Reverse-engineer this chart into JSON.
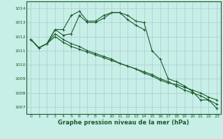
{
  "title": "Graphe pression niveau de la mer (hPa)",
  "bg_color": "#c8eee8",
  "grid_color": "#aacccc",
  "line_color": "#1a5c2a",
  "x": [
    0,
    1,
    2,
    3,
    4,
    5,
    6,
    7,
    8,
    9,
    10,
    11,
    12,
    13,
    14,
    15,
    16,
    17,
    18,
    19,
    20,
    21,
    22,
    23
  ],
  "series": [
    [
      1011.8,
      1011.2,
      1011.5,
      1012.5,
      1012.5,
      1013.5,
      1013.8,
      1013.1,
      1013.1,
      1013.5,
      1013.7,
      1013.7,
      1013.5,
      1013.1,
      1013.0,
      1011.0,
      1010.4,
      1009.0,
      1008.8,
      1008.5,
      1008.1,
      1007.5,
      1007.5,
      1006.9
    ],
    [
      1011.8,
      1011.2,
      1011.5,
      1012.5,
      1012.1,
      1012.2,
      1013.5,
      1013.0,
      1013.0,
      1013.3,
      1013.7,
      1013.7,
      1013.2,
      1012.8,
      1012.5,
      null,
      null,
      null,
      null,
      null,
      null,
      null,
      null,
      null
    ],
    [
      1011.8,
      1011.2,
      1011.5,
      1012.2,
      1011.8,
      1011.5,
      1011.3,
      1011.0,
      1010.8,
      1010.6,
      1010.4,
      1010.1,
      1009.9,
      1009.7,
      1009.4,
      1009.2,
      1008.9,
      1008.7,
      1008.6,
      1008.4,
      1008.2,
      1008.0,
      1007.7,
      1007.5
    ],
    [
      1011.8,
      1011.2,
      1011.5,
      1012.0,
      1011.6,
      1011.3,
      1011.1,
      1010.9,
      1010.7,
      1010.5,
      1010.3,
      1010.1,
      1009.9,
      1009.7,
      1009.5,
      1009.3,
      1009.0,
      1008.8,
      1008.5,
      1008.2,
      1008.0,
      1007.8,
      1007.5,
      1007.2
    ]
  ],
  "ylim": [
    1006.5,
    1014.5
  ],
  "yticks": [
    1007,
    1008,
    1009,
    1010,
    1011,
    1012,
    1013,
    1014
  ],
  "xticks": [
    0,
    1,
    2,
    3,
    4,
    5,
    6,
    7,
    8,
    9,
    10,
    11,
    12,
    13,
    14,
    15,
    16,
    17,
    18,
    19,
    20,
    21,
    22,
    23
  ],
  "marker": "+",
  "marker_size": 3,
  "linewidth": 0.8,
  "title_fontsize": 6.0,
  "tick_fontsize": 4.5
}
